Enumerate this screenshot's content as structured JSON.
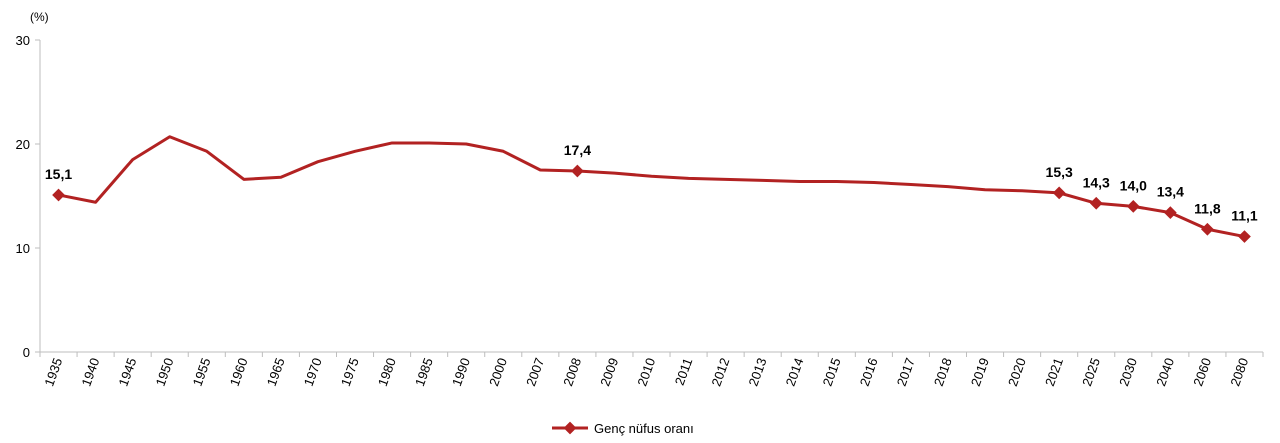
{
  "chart_data": {
    "type": "line",
    "title": "",
    "xlabel": "",
    "ylabel": "(%)",
    "ylim": [
      0,
      30
    ],
    "yticks": [
      "0",
      "10",
      "20",
      "30"
    ],
    "grid": false,
    "legend_position": "bottom",
    "line_color": "#B22222",
    "categories": [
      "1935",
      "1940",
      "1945",
      "1950",
      "1955",
      "1960",
      "1965",
      "1970",
      "1975",
      "1980",
      "1985",
      "1990",
      "2000",
      "2007",
      "2008",
      "2009",
      "2010",
      "2011",
      "2012",
      "2013",
      "2014",
      "2015",
      "2016",
      "2017",
      "2018",
      "2019",
      "2020",
      "2021",
      "2025",
      "2030",
      "2040",
      "2060",
      "2080"
    ],
    "series": [
      {
        "name": "Genç nüfus oranı",
        "values": [
          15.1,
          14.4,
          18.5,
          20.7,
          19.3,
          16.6,
          16.8,
          18.3,
          19.3,
          20.1,
          20.1,
          20.0,
          19.3,
          17.5,
          17.4,
          17.2,
          16.9,
          16.7,
          16.6,
          16.5,
          16.4,
          16.4,
          16.3,
          16.1,
          15.9,
          15.6,
          15.5,
          15.3,
          14.3,
          14.0,
          13.4,
          11.8,
          11.1
        ],
        "markers": [
          0,
          14,
          27,
          28,
          29,
          30,
          31,
          32
        ],
        "labels": {
          "0": "15,1",
          "14": "17,4",
          "27": "15,3",
          "28": "14,3",
          "29": "14,0",
          "30": "13,4",
          "31": "11,8",
          "32": "11,1"
        }
      }
    ]
  }
}
